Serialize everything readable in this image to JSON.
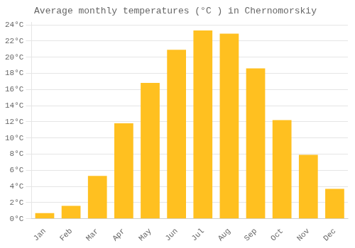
{
  "chart_data": {
    "type": "bar",
    "title": "Average monthly temperatures (°C ) in Chernomorskiy",
    "categories": [
      "Jan",
      "Feb",
      "Mar",
      "Apr",
      "May",
      "Jun",
      "Jul",
      "Aug",
      "Sep",
      "Oct",
      "Nov",
      "Dec"
    ],
    "values": [
      0.7,
      1.6,
      5.3,
      11.8,
      16.8,
      20.9,
      23.3,
      22.9,
      18.6,
      12.2,
      7.9,
      3.7
    ],
    "color": "#FFC020",
    "ylim": [
      0,
      24.3
    ],
    "yticks": [
      {
        "value": 0,
        "label": "0°C"
      },
      {
        "value": 2,
        "label": "2°C"
      },
      {
        "value": 4,
        "label": "4°C"
      },
      {
        "value": 6,
        "label": "6°C"
      },
      {
        "value": 8,
        "label": "8°C"
      },
      {
        "value": 10,
        "label": "10°C"
      },
      {
        "value": 12,
        "label": "12°C"
      },
      {
        "value": 14,
        "label": "14°C"
      },
      {
        "value": 16,
        "label": "16°C"
      },
      {
        "value": 18,
        "label": "18°C"
      },
      {
        "value": 20,
        "label": "20°C"
      },
      {
        "value": 22,
        "label": "22°C"
      },
      {
        "value": 24,
        "label": "24°C"
      }
    ],
    "grid": true
  }
}
